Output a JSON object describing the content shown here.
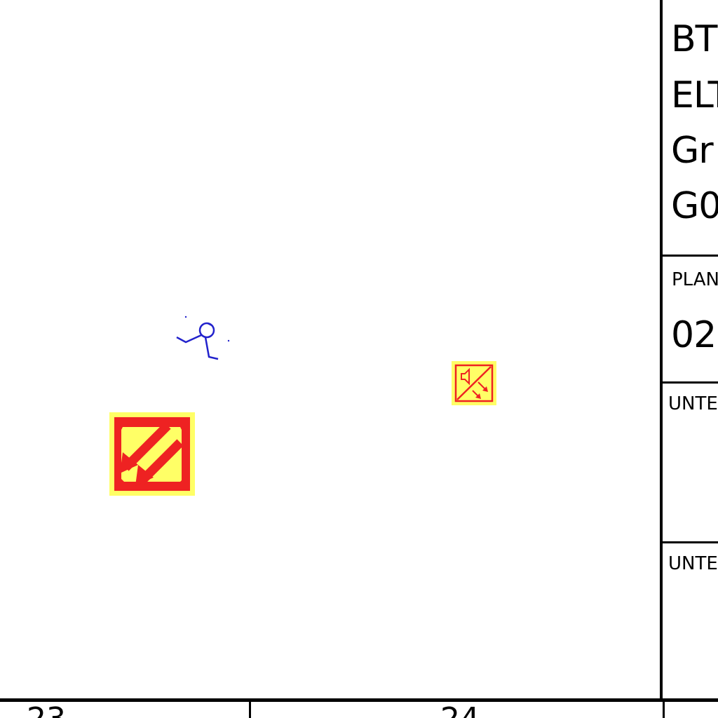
{
  "title_block": {
    "lines": [
      "BT",
      "ELT",
      "Gr",
      "G0"
    ],
    "plan_label": "PLAN",
    "plan_value": "02",
    "section_1_label": "UNTE",
    "section_2_label": "UNTE"
  },
  "ruler": {
    "labels": [
      "23",
      "24"
    ]
  },
  "symbols": [
    {
      "name": "person-icon",
      "color": "#2222cc"
    },
    {
      "name": "emergency-exit-sign-icon",
      "color": "#ee2222",
      "background": "#ffff66"
    },
    {
      "name": "alarm-speaker-sign-icon",
      "color": "#ee2222",
      "background": "#ffff66"
    }
  ]
}
